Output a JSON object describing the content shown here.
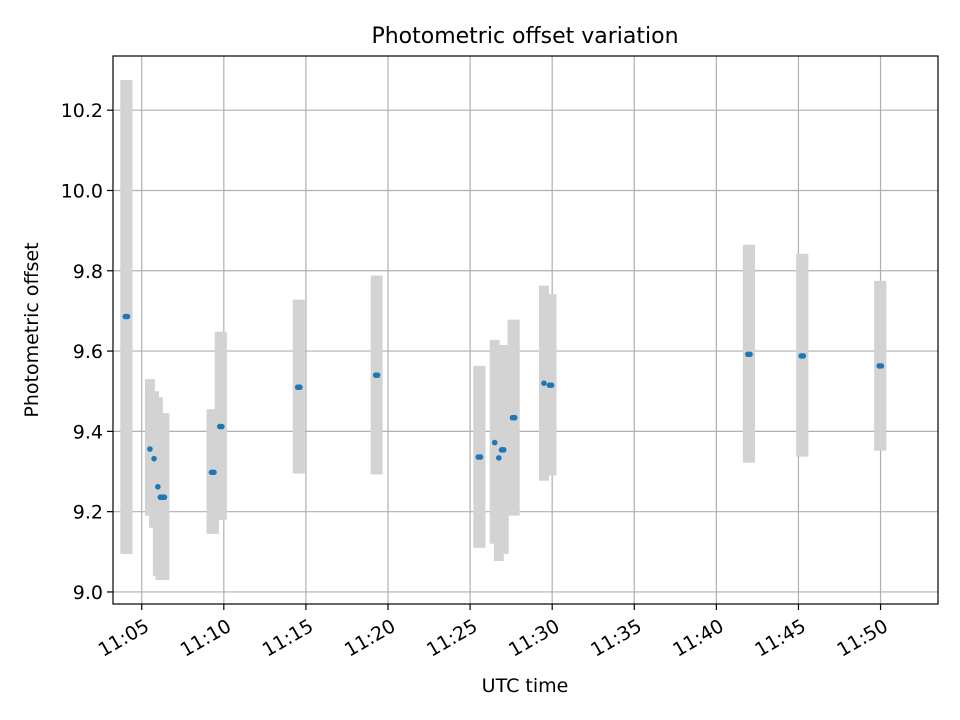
{
  "colors": {
    "point": "#1f77b4",
    "errorbar": "#d3d3d3",
    "grid": "#b0b0b0",
    "axis": "#000000"
  },
  "chart_data": {
    "type": "scatter",
    "title": "Photometric offset variation",
    "xlabel": "UTC time",
    "ylabel": "Photometric offset",
    "xlim": [
      "11:03:15",
      "11:53:30"
    ],
    "ylim": [
      8.97,
      10.335
    ],
    "grid": true,
    "x_ticks": [
      "11:05",
      "11:10",
      "11:15",
      "11:20",
      "11:25",
      "11:30",
      "11:35",
      "11:40",
      "11:45",
      "11:50"
    ],
    "y_ticks": [
      "9.0",
      "9.2",
      "9.4",
      "9.6",
      "9.8",
      "10.0",
      "10.2"
    ],
    "series": [
      {
        "marker": "point",
        "error_bars": true,
        "points": [
          {
            "x": "11:04:00",
            "y": 9.686,
            "ylo": 9.095,
            "yhi": 10.275
          },
          {
            "x": "11:04:08",
            "y": 9.686,
            "ylo": 9.095,
            "yhi": 10.275
          },
          {
            "x": "11:05:30",
            "y": 9.356,
            "ylo": 9.19,
            "yhi": 9.53
          },
          {
            "x": "11:05:45",
            "y": 9.332,
            "ylo": 9.16,
            "yhi": 9.5
          },
          {
            "x": "11:05:59",
            "y": 9.262,
            "ylo": 9.04,
            "yhi": 9.485
          },
          {
            "x": "11:06:08",
            "y": 9.236,
            "ylo": 9.03,
            "yhi": 9.445
          },
          {
            "x": "11:06:15",
            "y": 9.236,
            "ylo": 9.03,
            "yhi": 9.445
          },
          {
            "x": "11:06:23",
            "y": 9.236,
            "ylo": 9.03,
            "yhi": 9.445
          },
          {
            "x": "11:09:15",
            "y": 9.298,
            "ylo": 9.145,
            "yhi": 9.455
          },
          {
            "x": "11:09:24",
            "y": 9.298,
            "ylo": 9.145,
            "yhi": 9.455
          },
          {
            "x": "11:09:45",
            "y": 9.412,
            "ylo": 9.18,
            "yhi": 9.648
          },
          {
            "x": "11:09:53",
            "y": 9.412,
            "ylo": 9.18,
            "yhi": 9.648
          },
          {
            "x": "11:14:30",
            "y": 9.51,
            "ylo": 9.295,
            "yhi": 9.728
          },
          {
            "x": "11:14:38",
            "y": 9.51,
            "ylo": 9.295,
            "yhi": 9.728
          },
          {
            "x": "11:19:15",
            "y": 9.54,
            "ylo": 9.293,
            "yhi": 9.788
          },
          {
            "x": "11:19:22",
            "y": 9.54,
            "ylo": 9.293,
            "yhi": 9.788
          },
          {
            "x": "11:25:30",
            "y": 9.336,
            "ylo": 9.11,
            "yhi": 9.563
          },
          {
            "x": "11:25:38",
            "y": 9.336,
            "ylo": 9.11,
            "yhi": 9.563
          },
          {
            "x": "11:26:30",
            "y": 9.372,
            "ylo": 9.12,
            "yhi": 9.628
          },
          {
            "x": "11:26:45",
            "y": 9.334,
            "ylo": 9.077,
            "yhi": 9.59
          },
          {
            "x": "11:26:55",
            "y": 9.354,
            "ylo": 9.095,
            "yhi": 9.615
          },
          {
            "x": "11:27:03",
            "y": 9.354,
            "ylo": 9.095,
            "yhi": 9.615
          },
          {
            "x": "11:27:35",
            "y": 9.434,
            "ylo": 9.19,
            "yhi": 9.678
          },
          {
            "x": "11:27:43",
            "y": 9.434,
            "ylo": 9.19,
            "yhi": 9.678
          },
          {
            "x": "11:29:30",
            "y": 9.52,
            "ylo": 9.277,
            "yhi": 9.763
          },
          {
            "x": "11:29:50",
            "y": 9.515,
            "ylo": 9.29,
            "yhi": 9.742
          },
          {
            "x": "11:29:58",
            "y": 9.515,
            "ylo": 9.29,
            "yhi": 9.742
          },
          {
            "x": "11:41:55",
            "y": 9.592,
            "ylo": 9.322,
            "yhi": 9.865
          },
          {
            "x": "11:42:03",
            "y": 9.592,
            "ylo": 9.322,
            "yhi": 9.865
          },
          {
            "x": "11:45:10",
            "y": 9.588,
            "ylo": 9.337,
            "yhi": 9.842
          },
          {
            "x": "11:45:18",
            "y": 9.588,
            "ylo": 9.337,
            "yhi": 9.842
          },
          {
            "x": "11:49:55",
            "y": 9.563,
            "ylo": 9.352,
            "yhi": 9.775
          },
          {
            "x": "11:50:03",
            "y": 9.563,
            "ylo": 9.352,
            "yhi": 9.775
          }
        ]
      }
    ]
  }
}
